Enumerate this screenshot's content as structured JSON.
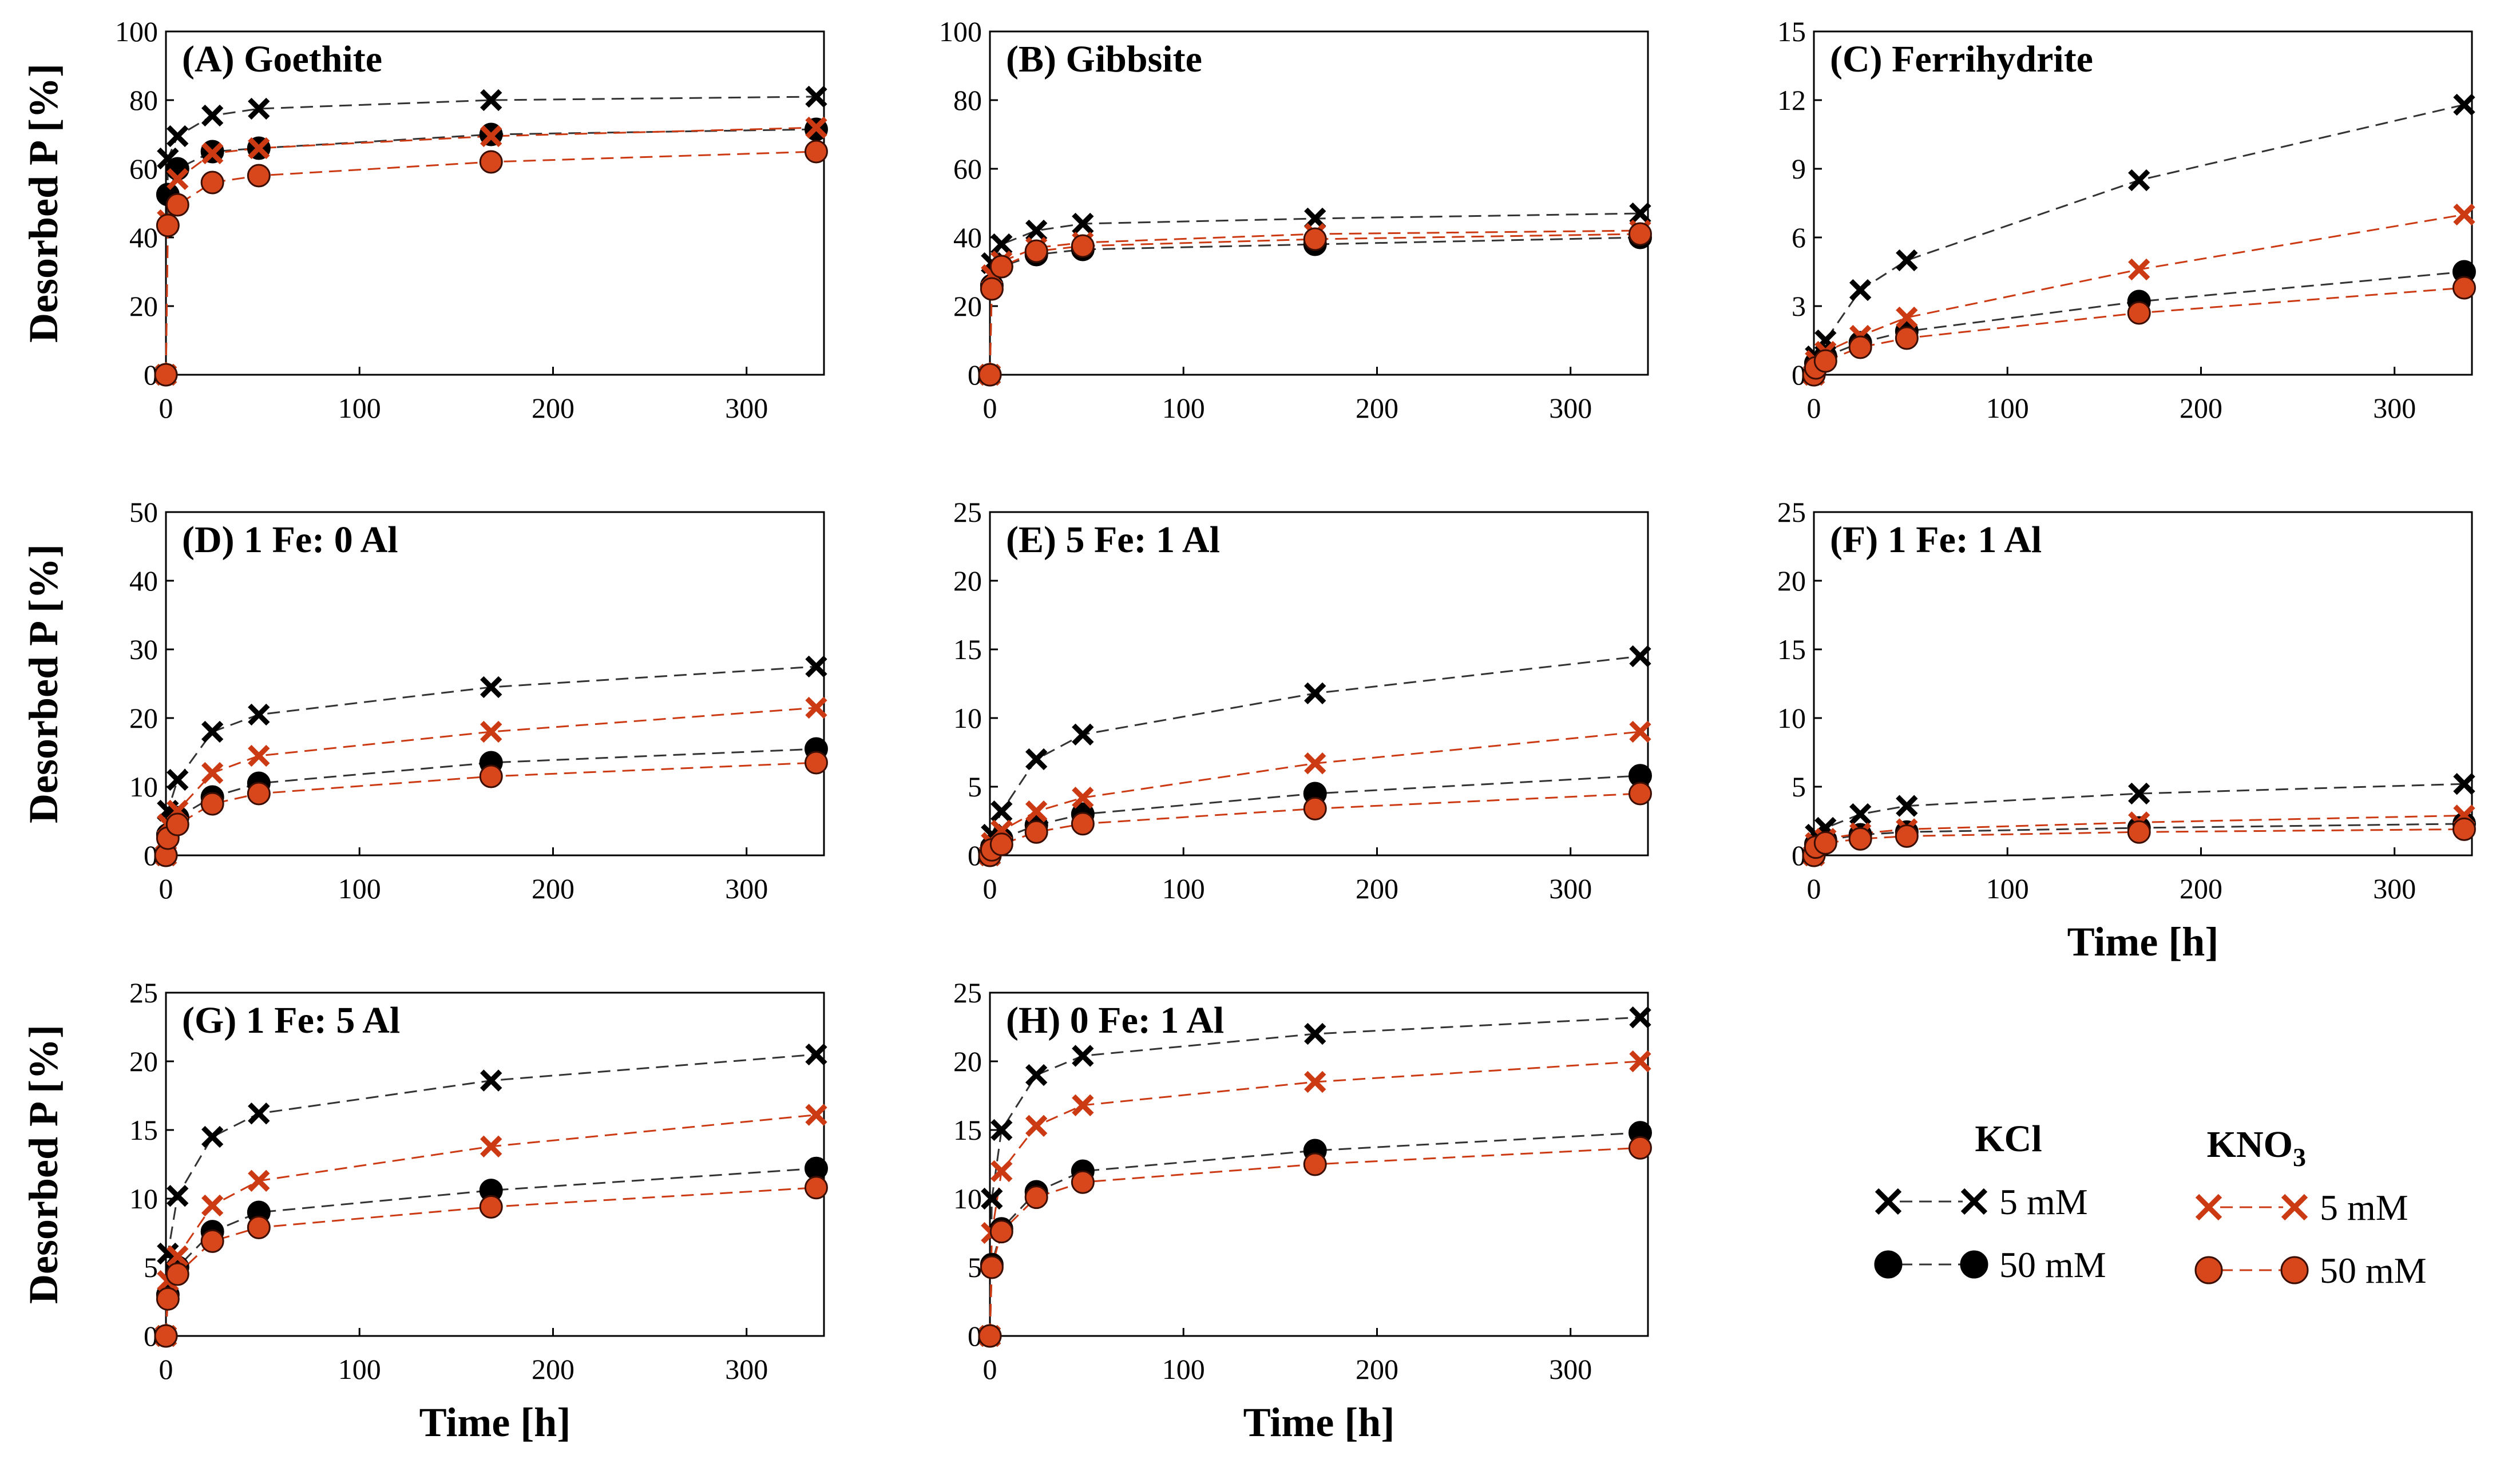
{
  "colors": {
    "kcl": "#000000",
    "kno3": "#cc3a14",
    "kno3_marker_fill": "#d8461c",
    "kcl_line": "#333333",
    "kno3_line": "#cc3a14"
  },
  "legend": {
    "kcl_title": "KCl",
    "kno3_title_main": "KNO",
    "kno3_title_sub": "3",
    "low_label": "5 mM",
    "high_label": "50 mM"
  },
  "chart_data": [
    {
      "type": "line",
      "title": "(A) Goethite",
      "ylabel": "Desorbed P [%]",
      "xlabel": "",
      "xlim": [
        0,
        340
      ],
      "xticks": [
        0,
        100,
        200,
        300
      ],
      "ylim": [
        0,
        100
      ],
      "yticks": [
        0,
        20,
        40,
        60,
        80,
        100
      ],
      "x": [
        0,
        1,
        6,
        24,
        48,
        168,
        336
      ],
      "series": [
        {
          "name": "KCl 5 mM",
          "values": [
            0,
            63,
            69.5,
            75.5,
            77.5,
            80,
            81
          ]
        },
        {
          "name": "KCl 50 mM",
          "values": [
            0,
            52.5,
            60,
            65,
            66,
            70,
            71.5
          ]
        },
        {
          "name": "KNO3 5 mM",
          "values": [
            0,
            45,
            57,
            64.5,
            66,
            69.5,
            72
          ]
        },
        {
          "name": "KNO3 50 mM",
          "values": [
            0,
            43.5,
            49.5,
            56,
            58,
            62,
            65
          ]
        }
      ]
    },
    {
      "type": "line",
      "title": "(B) Gibbsite",
      "ylabel": "",
      "xlabel": "",
      "xlim": [
        0,
        340
      ],
      "xticks": [
        0,
        100,
        200,
        300
      ],
      "ylim": [
        0,
        100
      ],
      "yticks": [
        0,
        20,
        40,
        60,
        80,
        100
      ],
      "x": [
        0,
        1,
        6,
        24,
        48,
        168,
        336
      ],
      "series": [
        {
          "name": "KCl 5 mM",
          "values": [
            0,
            32.5,
            38,
            42,
            44,
            45.5,
            47
          ]
        },
        {
          "name": "KCl 50 mM",
          "values": [
            0,
            26,
            31.5,
            35,
            36.5,
            38,
            40
          ]
        },
        {
          "name": "KNO3 5 mM",
          "values": [
            0,
            29,
            33,
            37,
            38.5,
            41,
            42
          ]
        },
        {
          "name": "KNO3 50 mM",
          "values": [
            0,
            25,
            31.5,
            36,
            37.5,
            39.5,
            41
          ]
        }
      ]
    },
    {
      "type": "line",
      "title": "(C) Ferrihydrite",
      "ylabel": "",
      "xlabel": "",
      "xlim": [
        0,
        340
      ],
      "xticks": [
        0,
        100,
        200,
        300
      ],
      "ylim": [
        0,
        15
      ],
      "yticks": [
        0,
        3,
        6,
        9,
        12,
        15
      ],
      "x": [
        0,
        1,
        6,
        24,
        48,
        168,
        336
      ],
      "series": [
        {
          "name": "KCl 5 mM",
          "values": [
            0,
            0.8,
            1.5,
            3.7,
            5.0,
            8.5,
            11.8
          ]
        },
        {
          "name": "KCl 50 mM",
          "values": [
            0,
            0.5,
            0.8,
            1.4,
            1.9,
            3.2,
            4.5
          ]
        },
        {
          "name": "KNO3 5 mM",
          "values": [
            0,
            0.6,
            1.0,
            1.7,
            2.5,
            4.6,
            7.0
          ]
        },
        {
          "name": "KNO3 50 mM",
          "values": [
            0,
            0.3,
            0.6,
            1.2,
            1.6,
            2.7,
            3.8
          ]
        }
      ]
    },
    {
      "type": "line",
      "title": "(D) 1 Fe: 0 Al",
      "ylabel": "Desorbed P [%]",
      "xlabel": "",
      "xlim": [
        0,
        340
      ],
      "xticks": [
        0,
        100,
        200,
        300
      ],
      "ylim": [
        0,
        50
      ],
      "yticks": [
        0,
        10,
        20,
        30,
        40,
        50
      ],
      "x": [
        0,
        1,
        6,
        24,
        48,
        168,
        336
      ],
      "series": [
        {
          "name": "KCl 5 mM",
          "values": [
            0,
            6.5,
            11,
            18,
            20.5,
            24.5,
            27.5
          ]
        },
        {
          "name": "KCl 50 mM",
          "values": [
            0,
            3,
            5.5,
            8.5,
            10.5,
            13.5,
            15.5
          ]
        },
        {
          "name": "KNO3 5 mM",
          "values": [
            0,
            4.5,
            6.5,
            12,
            14.5,
            18,
            21.5
          ]
        },
        {
          "name": "KNO3 50 mM",
          "values": [
            0,
            2.5,
            4.5,
            7.5,
            9,
            11.5,
            13.5
          ]
        }
      ]
    },
    {
      "type": "line",
      "title": "(E) 5 Fe: 1 Al",
      "ylabel": "",
      "xlabel": "",
      "xlim": [
        0,
        340
      ],
      "xticks": [
        0,
        100,
        200,
        300
      ],
      "ylim": [
        0,
        25
      ],
      "yticks": [
        0,
        5,
        10,
        15,
        20,
        25
      ],
      "x": [
        0,
        1,
        6,
        24,
        48,
        168,
        336
      ],
      "series": [
        {
          "name": "KCl 5 mM",
          "values": [
            0,
            1.5,
            3.2,
            7,
            8.8,
            11.8,
            14.5
          ]
        },
        {
          "name": "KCl 50 mM",
          "values": [
            0,
            0.6,
            1.2,
            2.2,
            3.0,
            4.5,
            5.8
          ]
        },
        {
          "name": "KNO3 5 mM",
          "values": [
            0,
            0.9,
            1.8,
            3.2,
            4.2,
            6.7,
            9.0
          ]
        },
        {
          "name": "KNO3 50 mM",
          "values": [
            0,
            0.4,
            0.8,
            1.7,
            2.3,
            3.4,
            4.5
          ]
        }
      ]
    },
    {
      "type": "line",
      "title": "(F) 1 Fe: 1 Al",
      "ylabel": "",
      "xlabel": "Time [h]",
      "xlim": [
        0,
        340
      ],
      "xticks": [
        0,
        100,
        200,
        300
      ],
      "ylim": [
        0,
        25
      ],
      "yticks": [
        0,
        5,
        10,
        15,
        20,
        25
      ],
      "x": [
        0,
        1,
        6,
        24,
        48,
        168,
        336
      ],
      "series": [
        {
          "name": "KCl 5 mM",
          "values": [
            0,
            1.5,
            2.0,
            3.0,
            3.6,
            4.5,
            5.2
          ]
        },
        {
          "name": "KCl 50 mM",
          "values": [
            0,
            0.8,
            1.1,
            1.5,
            1.7,
            2.0,
            2.3
          ]
        },
        {
          "name": "KNO3 5 mM",
          "values": [
            0,
            0.9,
            1.2,
            1.6,
            1.9,
            2.4,
            2.9
          ]
        },
        {
          "name": "KNO3 50 mM",
          "values": [
            0,
            0.6,
            0.9,
            1.2,
            1.4,
            1.7,
            1.9
          ]
        }
      ]
    },
    {
      "type": "line",
      "title": "(G) 1 Fe: 5 Al",
      "ylabel": "Desorbed P [%]",
      "xlabel": "Time [h]",
      "xlim": [
        0,
        340
      ],
      "xticks": [
        0,
        100,
        200,
        300
      ],
      "ylim": [
        0,
        25
      ],
      "yticks": [
        0,
        5,
        10,
        15,
        20,
        25
      ],
      "x": [
        0,
        1,
        6,
        24,
        48,
        168,
        336
      ],
      "series": [
        {
          "name": "KCl 5 mM",
          "values": [
            0,
            6,
            10.2,
            14.5,
            16.2,
            18.6,
            20.5
          ]
        },
        {
          "name": "KCl 50 mM",
          "values": [
            0,
            3,
            5,
            7.6,
            9,
            10.6,
            12.2
          ]
        },
        {
          "name": "KNO3 5 mM",
          "values": [
            0,
            4,
            5.8,
            9.5,
            11.3,
            13.8,
            16.1
          ]
        },
        {
          "name": "KNO3 50 mM",
          "values": [
            0,
            2.7,
            4.5,
            6.9,
            7.9,
            9.4,
            10.8
          ]
        }
      ]
    },
    {
      "type": "line",
      "title": "(H) 0 Fe: 1 Al",
      "ylabel": "",
      "xlabel": "Time [h]",
      "xlim": [
        0,
        340
      ],
      "xticks": [
        0,
        100,
        200,
        300
      ],
      "ylim": [
        0,
        25
      ],
      "yticks": [
        0,
        5,
        10,
        15,
        20,
        25
      ],
      "x": [
        0,
        1,
        6,
        24,
        48,
        168,
        336
      ],
      "series": [
        {
          "name": "KCl 5 mM",
          "values": [
            0,
            10,
            15,
            19,
            20.4,
            22,
            23.2
          ]
        },
        {
          "name": "KCl 50 mM",
          "values": [
            0,
            5.2,
            7.8,
            10.5,
            12,
            13.5,
            14.8
          ]
        },
        {
          "name": "KNO3 5 mM",
          "values": [
            0,
            7.5,
            12,
            15.3,
            16.8,
            18.5,
            20
          ]
        },
        {
          "name": "KNO3 50 mM",
          "values": [
            0,
            5,
            7.6,
            10.1,
            11.2,
            12.5,
            13.7
          ]
        }
      ]
    }
  ]
}
